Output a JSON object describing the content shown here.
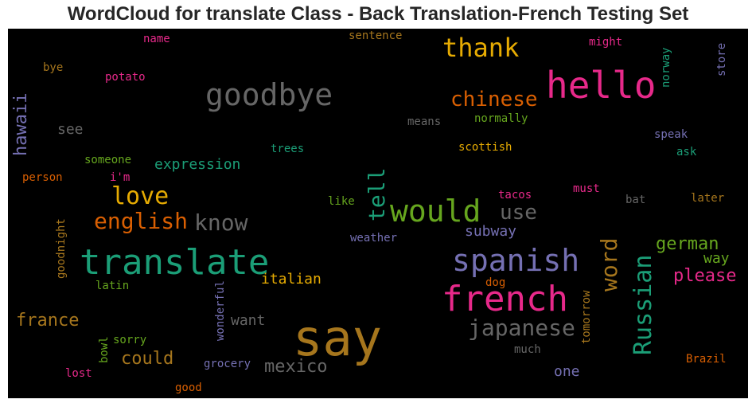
{
  "title": "WordCloud for translate Class - Back Translation-French Testing Set",
  "words": [
    {
      "text": "say",
      "color": "#a6761d"
    },
    {
      "text": "hello",
      "color": "#e7298a"
    },
    {
      "text": "translate",
      "color": "#1b9e77"
    },
    {
      "text": "goodbye",
      "color": "#666666"
    },
    {
      "text": "french",
      "color": "#e7298a"
    },
    {
      "text": "spanish",
      "color": "#7570b3"
    },
    {
      "text": "would",
      "color": "#66a61e"
    },
    {
      "text": "thank",
      "color": "#e6ab02"
    },
    {
      "text": "chinese",
      "color": "#d95f02"
    },
    {
      "text": "love",
      "color": "#e6ab02"
    },
    {
      "text": "english",
      "color": "#d95f02"
    },
    {
      "text": "know",
      "color": "#666666"
    },
    {
      "text": "japanese",
      "color": "#666666"
    },
    {
      "text": "Russian",
      "color": "#1b9e77"
    },
    {
      "text": "tell",
      "color": "#1b9e77"
    },
    {
      "text": "word",
      "color": "#a6761d"
    },
    {
      "text": "use",
      "color": "#666666"
    },
    {
      "text": "mexico",
      "color": "#666666"
    },
    {
      "text": "france",
      "color": "#a6761d"
    },
    {
      "text": "could",
      "color": "#a6761d"
    },
    {
      "text": "german",
      "color": "#66a61e"
    },
    {
      "text": "please",
      "color": "#e7298a"
    },
    {
      "text": "hawaii",
      "color": "#7570b3"
    },
    {
      "text": "italian",
      "color": "#e6ab02"
    },
    {
      "text": "expression",
      "color": "#1b9e77"
    },
    {
      "text": "subway",
      "color": "#7570b3"
    },
    {
      "text": "want",
      "color": "#666666"
    },
    {
      "text": "one",
      "color": "#7570b3"
    },
    {
      "text": "way",
      "color": "#66a61e"
    },
    {
      "text": "see",
      "color": "#666666"
    },
    {
      "text": "name",
      "color": "#e7298a"
    },
    {
      "text": "sentence",
      "color": "#a6761d"
    },
    {
      "text": "might",
      "color": "#e7298a"
    },
    {
      "text": "norway",
      "color": "#1b9e77"
    },
    {
      "text": "store",
      "color": "#7570b3"
    },
    {
      "text": "bye",
      "color": "#a6761d"
    },
    {
      "text": "potato",
      "color": "#e7298a"
    },
    {
      "text": "means",
      "color": "#666666"
    },
    {
      "text": "normally",
      "color": "#66a61e"
    },
    {
      "text": "speak",
      "color": "#7570b3"
    },
    {
      "text": "ask",
      "color": "#1b9e77"
    },
    {
      "text": "trees",
      "color": "#1b9e77"
    },
    {
      "text": "scottish",
      "color": "#e6ab02"
    },
    {
      "text": "someone",
      "color": "#66a61e"
    },
    {
      "text": "i'm",
      "color": "#e7298a"
    },
    {
      "text": "person",
      "color": "#d95f02"
    },
    {
      "text": "tacos",
      "color": "#e7298a"
    },
    {
      "text": "must",
      "color": "#e7298a"
    },
    {
      "text": "bat",
      "color": "#666666"
    },
    {
      "text": "later",
      "color": "#a6761d"
    },
    {
      "text": "like",
      "color": "#66a61e"
    },
    {
      "text": "weather",
      "color": "#7570b3"
    },
    {
      "text": "goodnight",
      "color": "#a6761d"
    },
    {
      "text": "latin",
      "color": "#66a61e"
    },
    {
      "text": "wonderful",
      "color": "#7570b3"
    },
    {
      "text": "dog",
      "color": "#d95f02"
    },
    {
      "text": "tomorrow",
      "color": "#a6761d"
    },
    {
      "text": "sorry",
      "color": "#66a61e"
    },
    {
      "text": "bowl",
      "color": "#66a61e"
    },
    {
      "text": "much",
      "color": "#666666"
    },
    {
      "text": "grocery",
      "color": "#7570b3"
    },
    {
      "text": "lost",
      "color": "#e7298a"
    },
    {
      "text": "good",
      "color": "#d95f02"
    },
    {
      "text": "Brazil",
      "color": "#d95f02"
    }
  ]
}
